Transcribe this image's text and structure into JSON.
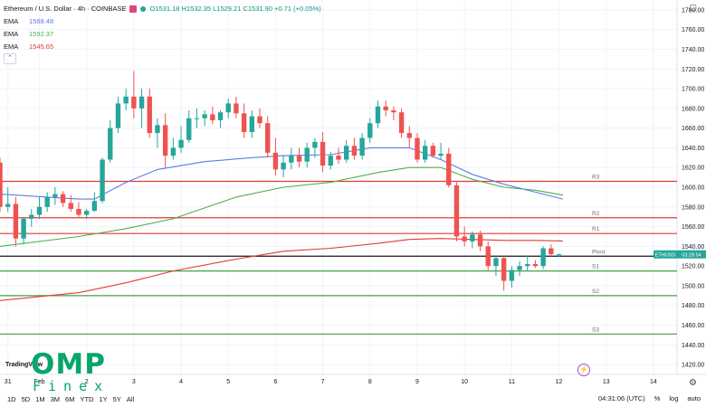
{
  "header": {
    "symbol_title": "Ethereum / U.S. Dollar · 4h · COINBASE",
    "ohlc": "O1531.18 H1532.35 L1529.21 C1531.90 +0.71 (+0.05%)"
  },
  "indicators": [
    {
      "label": "EMA",
      "value": "1588.48",
      "color": "#5b7ee6"
    },
    {
      "label": "EMA",
      "value": "1592.37",
      "color": "#4caf50"
    },
    {
      "label": "EMA",
      "value": "1545.65",
      "color": "#e53935"
    }
  ],
  "collapse_icon": "chevron-up-icon",
  "settings_icon": "gear-icon",
  "toolbar": {
    "timeframes": [
      "1D",
      "5D",
      "1M",
      "3M",
      "6M",
      "YTD",
      "1Y",
      "5Y",
      "All"
    ],
    "time": "04:31:06 (UTC)",
    "percent": "%",
    "log": "log",
    "auto": "auto"
  },
  "watermark": {
    "tv": "TradingView",
    "brand": "OMP",
    "brand_sub": "Finex"
  },
  "chart_data": {
    "type": "candlestick",
    "ylim": [
      1410,
      1790
    ],
    "y_ticks": [
      1420,
      1440,
      1460,
      1480,
      1500,
      1520,
      1540,
      1560,
      1580,
      1600,
      1620,
      1640,
      1660,
      1680,
      1700,
      1720,
      1740,
      1760,
      1780
    ],
    "x_ticks": [
      "31",
      "Feb",
      "2",
      "3",
      "4",
      "5",
      "6",
      "7",
      "8",
      "9",
      "10",
      "11",
      "12",
      "13",
      "14"
    ],
    "x_ticks_pos": [
      1.0,
      5.0,
      11.0,
      17.0,
      23.0,
      29.0,
      35.0,
      41.0,
      47.0,
      53.0,
      59.0,
      65.0,
      71.0,
      77.0,
      83.0
    ],
    "x_range": [
      0,
      86
    ],
    "candles": [
      [
        0.0,
        1625,
        1630,
        1575,
        1580
      ],
      [
        1.0,
        1580,
        1600,
        1575,
        1583
      ],
      [
        2.0,
        1583,
        1590,
        1540,
        1548
      ],
      [
        3.0,
        1548,
        1570,
        1542,
        1568
      ],
      [
        4.0,
        1568,
        1578,
        1560,
        1572
      ],
      [
        5.0,
        1572,
        1590,
        1568,
        1580
      ],
      [
        6.0,
        1580,
        1595,
        1575,
        1590
      ],
      [
        7.0,
        1590,
        1600,
        1582,
        1593
      ],
      [
        8.0,
        1593,
        1596,
        1580,
        1584
      ],
      [
        9.0,
        1584,
        1592,
        1575,
        1578
      ],
      [
        10.0,
        1578,
        1585,
        1570,
        1572
      ],
      [
        11.0,
        1572,
        1578,
        1568,
        1576
      ],
      [
        12.0,
        1576,
        1595,
        1575,
        1586
      ],
      [
        13.0,
        1586,
        1630,
        1584,
        1628
      ],
      [
        14.0,
        1628,
        1668,
        1625,
        1660
      ],
      [
        15.0,
        1660,
        1692,
        1655,
        1685
      ],
      [
        16.0,
        1685,
        1700,
        1678,
        1692
      ],
      [
        17.0,
        1692,
        1718,
        1670,
        1680
      ],
      [
        18.0,
        1680,
        1700,
        1660,
        1692
      ],
      [
        19.0,
        1692,
        1700,
        1650,
        1655
      ],
      [
        20.0,
        1655,
        1670,
        1640,
        1663
      ],
      [
        21.0,
        1663,
        1675,
        1620,
        1632
      ],
      [
        22.0,
        1632,
        1650,
        1628,
        1640
      ],
      [
        23.0,
        1640,
        1662,
        1635,
        1648
      ],
      [
        24.0,
        1648,
        1678,
        1645,
        1670
      ],
      [
        25.0,
        1670,
        1680,
        1660,
        1670
      ],
      [
        26.0,
        1670,
        1678,
        1662,
        1674
      ],
      [
        27.0,
        1674,
        1682,
        1664,
        1668
      ],
      [
        28.0,
        1668,
        1678,
        1660,
        1676
      ],
      [
        29.0,
        1676,
        1690,
        1670,
        1685
      ],
      [
        30.0,
        1685,
        1692,
        1670,
        1675
      ],
      [
        31.0,
        1675,
        1685,
        1650,
        1656
      ],
      [
        32.0,
        1656,
        1678,
        1650,
        1672
      ],
      [
        33.0,
        1672,
        1680,
        1660,
        1665
      ],
      [
        34.0,
        1665,
        1672,
        1630,
        1635
      ],
      [
        35.0,
        1635,
        1650,
        1612,
        1618
      ],
      [
        36.0,
        1618,
        1632,
        1610,
        1625
      ],
      [
        37.0,
        1625,
        1640,
        1618,
        1632
      ],
      [
        38.0,
        1632,
        1640,
        1620,
        1626
      ],
      [
        39.0,
        1626,
        1645,
        1620,
        1640
      ],
      [
        40.0,
        1640,
        1650,
        1630,
        1646
      ],
      [
        41.0,
        1646,
        1656,
        1615,
        1622
      ],
      [
        42.0,
        1622,
        1636,
        1618,
        1632
      ],
      [
        43.0,
        1632,
        1640,
        1624,
        1628
      ],
      [
        44.0,
        1628,
        1648,
        1625,
        1642
      ],
      [
        45.0,
        1642,
        1650,
        1628,
        1632
      ],
      [
        46.0,
        1632,
        1655,
        1628,
        1650
      ],
      [
        47.0,
        1650,
        1670,
        1645,
        1665
      ],
      [
        48.0,
        1665,
        1688,
        1660,
        1682
      ],
      [
        49.0,
        1682,
        1688,
        1672,
        1678
      ],
      [
        50.0,
        1678,
        1682,
        1668,
        1676
      ],
      [
        51.0,
        1676,
        1680,
        1650,
        1655
      ],
      [
        52.0,
        1655,
        1662,
        1640,
        1650
      ],
      [
        53.0,
        1650,
        1655,
        1625,
        1628
      ],
      [
        54.0,
        1628,
        1648,
        1625,
        1642
      ],
      [
        55.0,
        1642,
        1645,
        1630,
        1632
      ],
      [
        56.0,
        1632,
        1645,
        1628,
        1634
      ],
      [
        57.0,
        1634,
        1640,
        1600,
        1602
      ],
      [
        58.0,
        1602,
        1605,
        1545,
        1550
      ],
      [
        59.0,
        1550,
        1560,
        1540,
        1545
      ],
      [
        60.0,
        1545,
        1555,
        1538,
        1552
      ],
      [
        61.0,
        1552,
        1556,
        1535,
        1540
      ],
      [
        62.0,
        1540,
        1545,
        1515,
        1520
      ],
      [
        63.0,
        1520,
        1530,
        1510,
        1528
      ],
      [
        64.0,
        1528,
        1530,
        1495,
        1505
      ],
      [
        65.0,
        1505,
        1520,
        1498,
        1516
      ],
      [
        66.0,
        1516,
        1525,
        1510,
        1520
      ],
      [
        67.0,
        1520,
        1530,
        1515,
        1522
      ],
      [
        68.0,
        1522,
        1526,
        1518,
        1520
      ],
      [
        69.0,
        1520,
        1540,
        1517,
        1538
      ],
      [
        70.0,
        1538,
        1542,
        1530,
        1532
      ],
      [
        71.0,
        1531.18,
        1532.35,
        1529.21,
        1531.9
      ]
    ],
    "ema_blue": [
      [
        0,
        1593
      ],
      [
        6,
        1590
      ],
      [
        10,
        1588
      ],
      [
        12,
        1588
      ],
      [
        16,
        1605
      ],
      [
        20,
        1618
      ],
      [
        26,
        1626
      ],
      [
        32,
        1630
      ],
      [
        36,
        1632
      ],
      [
        42,
        1633
      ],
      [
        47,
        1640
      ],
      [
        52,
        1640
      ],
      [
        56,
        1628
      ],
      [
        60,
        1613
      ],
      [
        64,
        1603
      ],
      [
        68,
        1595
      ],
      [
        71.5,
        1588
      ]
    ],
    "ema_green": [
      [
        0,
        1540
      ],
      [
        10,
        1550
      ],
      [
        16,
        1558
      ],
      [
        22,
        1568
      ],
      [
        30,
        1590
      ],
      [
        36,
        1600
      ],
      [
        42,
        1605
      ],
      [
        48,
        1615
      ],
      [
        52,
        1620
      ],
      [
        56,
        1620
      ],
      [
        60,
        1608
      ],
      [
        64,
        1600
      ],
      [
        68,
        1597
      ],
      [
        71.5,
        1592
      ]
    ],
    "ema_red": [
      [
        0,
        1485
      ],
      [
        10,
        1493
      ],
      [
        16,
        1503
      ],
      [
        22,
        1515
      ],
      [
        30,
        1527
      ],
      [
        36,
        1535
      ],
      [
        42,
        1538
      ],
      [
        48,
        1543
      ],
      [
        52,
        1547
      ],
      [
        56,
        1548
      ],
      [
        60,
        1547
      ],
      [
        64,
        1546
      ],
      [
        68,
        1546
      ],
      [
        71.5,
        1545.5
      ]
    ],
    "levels": [
      {
        "label": "R3",
        "value": 1606,
        "color": "#e53935"
      },
      {
        "label": "R2",
        "value": 1569,
        "color": "#e53935"
      },
      {
        "label": "R1",
        "value": 1553,
        "color": "#e53935"
      },
      {
        "label": "Pivot",
        "value": 1530,
        "color": "#131722"
      },
      {
        "label": "S1",
        "value": 1515,
        "color": "#43a047"
      },
      {
        "label": "S2",
        "value": 1490,
        "color": "#43a047"
      },
      {
        "label": "S3",
        "value": 1451,
        "color": "#43a047"
      }
    ],
    "price_tag": {
      "symbol": "ETHUSD",
      "countdown": "03:28:54",
      "value": 1531.9
    }
  }
}
